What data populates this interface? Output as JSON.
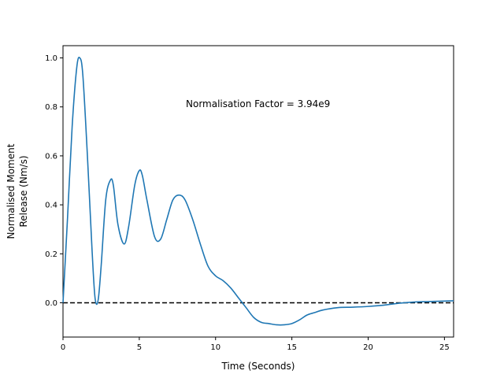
{
  "chart_data": {
    "type": "line",
    "title": "",
    "xlabel": "Time (Seconds)",
    "ylabel_lines": [
      "Normalised Moment",
      "Release (Nm/s)"
    ],
    "xlim": [
      0,
      25.6
    ],
    "ylim": [
      -0.14,
      1.05
    ],
    "xticks": [
      0,
      5,
      10,
      15,
      20,
      25
    ],
    "xtick_labels": [
      "0",
      "5",
      "10",
      "15",
      "20",
      "25"
    ],
    "yticks": [
      0.0,
      0.2,
      0.4,
      0.6,
      0.8,
      1.0
    ],
    "ytick_labels": [
      "0.0",
      "0.2",
      "0.4",
      "0.6",
      "0.8",
      "1.0"
    ],
    "grid": false,
    "annotation": "Normalisation Factor = 3.94e9",
    "series": [
      {
        "color": "#1f77b4",
        "style": "solid",
        "x": [
          0,
          0.3,
          0.6,
          0.9,
          1.1,
          1.3,
          1.6,
          1.9,
          2.1,
          2.3,
          2.5,
          2.8,
          3.1,
          3.3,
          3.6,
          4.0,
          4.3,
          4.7,
          5.0,
          5.2,
          5.5,
          6.0,
          6.4,
          6.8,
          7.2,
          7.6,
          8.0,
          8.5,
          9.0,
          9.5,
          10.0,
          10.5,
          11.0,
          11.5,
          12.0,
          12.5,
          13.0,
          13.5,
          14.0,
          14.5,
          15.0,
          15.5,
          16.0,
          16.5,
          17.0,
          18.0,
          19.0,
          20.0,
          21.0,
          22.0,
          23.0,
          24.0,
          25.0,
          25.6
        ],
        "y": [
          0.0,
          0.35,
          0.72,
          0.96,
          1.0,
          0.93,
          0.6,
          0.22,
          0.02,
          0.01,
          0.15,
          0.42,
          0.5,
          0.48,
          0.32,
          0.24,
          0.31,
          0.48,
          0.54,
          0.52,
          0.42,
          0.27,
          0.26,
          0.34,
          0.42,
          0.44,
          0.42,
          0.34,
          0.24,
          0.15,
          0.11,
          0.09,
          0.06,
          0.02,
          -0.02,
          -0.06,
          -0.08,
          -0.085,
          -0.09,
          -0.09,
          -0.085,
          -0.07,
          -0.05,
          -0.04,
          -0.03,
          -0.02,
          -0.018,
          -0.015,
          -0.01,
          -0.002,
          0.003,
          0.005,
          0.007,
          0.008
        ]
      },
      {
        "color": "#000000",
        "style": "dashed",
        "x": [
          0,
          25.6
        ],
        "y": [
          0,
          0
        ]
      }
    ]
  }
}
